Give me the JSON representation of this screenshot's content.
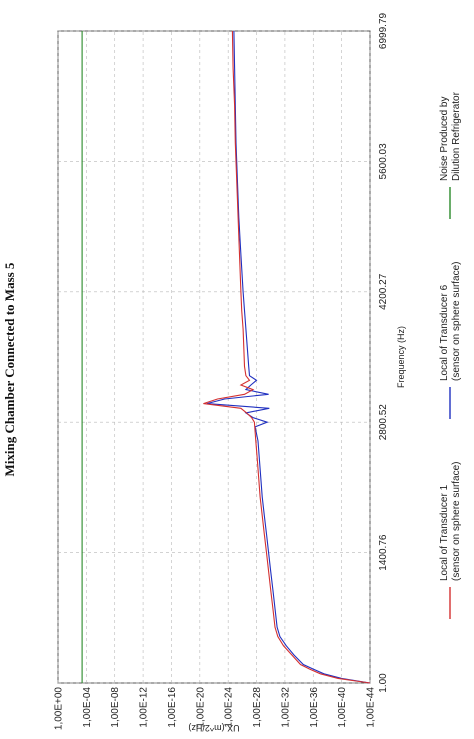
{
  "chart_data": {
    "type": "line",
    "title": "Mixing Chamber Connected to Mass 5",
    "xlabel": "Frequency (Hz)",
    "ylabel": "UX (m^2/Hz)",
    "x_ticks": [
      "1.00",
      "1400.76",
      "2800.52",
      "4200.27",
      "5600.03",
      "6999.79"
    ],
    "x_tick_values": [
      1.0,
      1400.76,
      2800.52,
      4200.27,
      5600.03,
      6999.79
    ],
    "y_ticks": [
      "1,00E-44",
      "1,00E-40",
      "1,00E-36",
      "1,00E-32",
      "1,00E-28",
      "1,00E-24",
      "1,00E-20",
      "1,00E-16",
      "1,00E-12",
      "1,00E-08",
      "1,00E-04",
      "1,00E+00"
    ],
    "y_tick_exponents": [
      -44,
      -40,
      -36,
      -32,
      -28,
      -24,
      -20,
      -16,
      -12,
      -8,
      -4,
      0
    ],
    "xlim": [
      1.0,
      6999.79
    ],
    "ylim_exponent": [
      -44,
      0
    ],
    "y_scale": "log",
    "grid": true,
    "legend_position": "bottom",
    "colors": {
      "series1": "#d43030",
      "series2": "#2030c0",
      "series3": "#2a8a2a"
    },
    "series": [
      {
        "name": "Local of Transducer 1\n(sensor on sphere surface)",
        "color": "#d43030",
        "x": [
          1,
          50,
          100,
          150,
          200,
          300,
          400,
          500,
          600,
          800,
          1000,
          1200,
          1400,
          1600,
          1800,
          2000,
          2200,
          2400,
          2600,
          2800,
          2850,
          2900,
          2950,
          3000,
          3050,
          3100,
          3150,
          3200,
          3250,
          3300,
          3400,
          3600,
          3800,
          4000,
          4200,
          4600,
          5000,
          5400,
          5800,
          6200,
          6600,
          6999.79
        ],
        "y": [
          -44,
          -39.5,
          -37,
          -35.5,
          -34.2,
          -33,
          -31.8,
          -31,
          -30.6,
          -30.3,
          -30,
          -29.7,
          -29.4,
          -29.1,
          -28.8,
          -28.5,
          -28.3,
          -28.1,
          -27.9,
          -27.7,
          -27.3,
          -26.6,
          -25.8,
          -20.5,
          -22.5,
          -26.3,
          -27.5,
          -25.8,
          -27,
          -26.5,
          -26.3,
          -26.2,
          -26.1,
          -25.9,
          -25.8,
          -25.6,
          -25.4,
          -25.2,
          -25.0,
          -24.9,
          -24.7,
          -24.6
        ]
      },
      {
        "name": "Local of Transducer 6\n(sensor on sphere surface)",
        "color": "#2030c0",
        "x": [
          1,
          50,
          100,
          150,
          200,
          300,
          400,
          500,
          600,
          800,
          1000,
          1200,
          1400,
          1600,
          1800,
          2000,
          2200,
          2400,
          2600,
          2750,
          2800,
          2850,
          2900,
          2950,
          3000,
          3050,
          3100,
          3150,
          3200,
          3250,
          3300,
          3400,
          3600,
          3800,
          4000,
          4200,
          4600,
          5000,
          5400,
          5800,
          6200,
          6600,
          6999.79
        ],
        "y": [
          -44,
          -40,
          -37.5,
          -36,
          -34.6,
          -33.3,
          -32.2,
          -31.3,
          -30.9,
          -30.6,
          -30.3,
          -30,
          -29.7,
          -29.4,
          -29.1,
          -28.8,
          -28.6,
          -28.4,
          -28.2,
          -27.8,
          -29.5,
          -27.5,
          -26.5,
          -29.8,
          -21,
          -23.5,
          -29.7,
          -26.5,
          -27.2,
          -28,
          -27,
          -26.9,
          -26.7,
          -26.5,
          -26.3,
          -26.1,
          -25.8,
          -25.5,
          -25.3,
          -25.1,
          -25.0,
          -24.9,
          -24.8
        ]
      },
      {
        "name": "Noise Produced by\nDilution Refrigerator",
        "color": "#2a8a2a",
        "x": [
          1,
          6999.79
        ],
        "y": [
          -3.4,
          -3.4
        ]
      }
    ]
  }
}
